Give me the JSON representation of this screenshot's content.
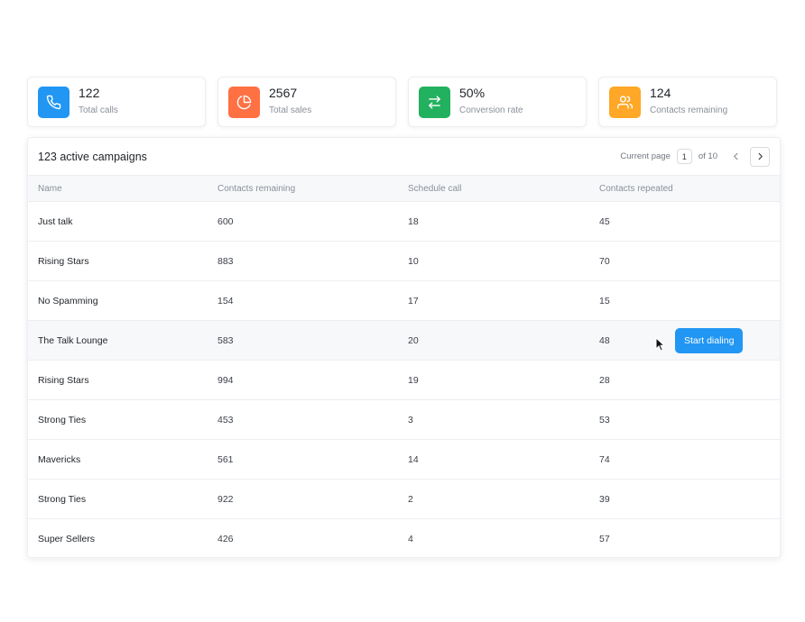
{
  "stats": [
    {
      "value": "122",
      "label": "Total calls",
      "icon": "phone-icon",
      "color": "#2196f3"
    },
    {
      "value": "2567",
      "label": "Total sales",
      "icon": "pie-chart-icon",
      "color": "#ff7043"
    },
    {
      "value": "50%",
      "label": "Conversion rate",
      "icon": "swap-arrows-icon",
      "color": "#22b15f"
    },
    {
      "value": "124",
      "label": "Contacts remaining",
      "icon": "users-icon",
      "color": "#ffa726"
    }
  ],
  "campaigns": {
    "title": "123 active campaigns",
    "pager": {
      "label": "Current page",
      "page": "1",
      "of": "of 10"
    },
    "columns": [
      "Name",
      "Contacts remaining",
      "Schedule call",
      "Contacts repeated"
    ],
    "rows": [
      {
        "name": "Just talk",
        "contacts_remaining": "600",
        "schedule_call": "18",
        "contacts_repeated": "45"
      },
      {
        "name": "Rising Stars",
        "contacts_remaining": "883",
        "schedule_call": "10",
        "contacts_repeated": "70"
      },
      {
        "name": "No Spamming",
        "contacts_remaining": "154",
        "schedule_call": "17",
        "contacts_repeated": "15"
      },
      {
        "name": "The Talk Lounge",
        "contacts_remaining": "583",
        "schedule_call": "20",
        "contacts_repeated": "48"
      },
      {
        "name": "Rising Stars",
        "contacts_remaining": "994",
        "schedule_call": "19",
        "contacts_repeated": "28"
      },
      {
        "name": "Strong Ties",
        "contacts_remaining": "453",
        "schedule_call": "3",
        "contacts_repeated": "53"
      },
      {
        "name": "Mavericks",
        "contacts_remaining": "561",
        "schedule_call": "14",
        "contacts_repeated": "74"
      },
      {
        "name": "Strong Ties",
        "contacts_remaining": "922",
        "schedule_call": "2",
        "contacts_repeated": "39"
      },
      {
        "name": "Super Sellers",
        "contacts_remaining": "426",
        "schedule_call": "4",
        "contacts_repeated": "57"
      }
    ],
    "action_label": "Start dialing",
    "accent": "#2196f3"
  }
}
